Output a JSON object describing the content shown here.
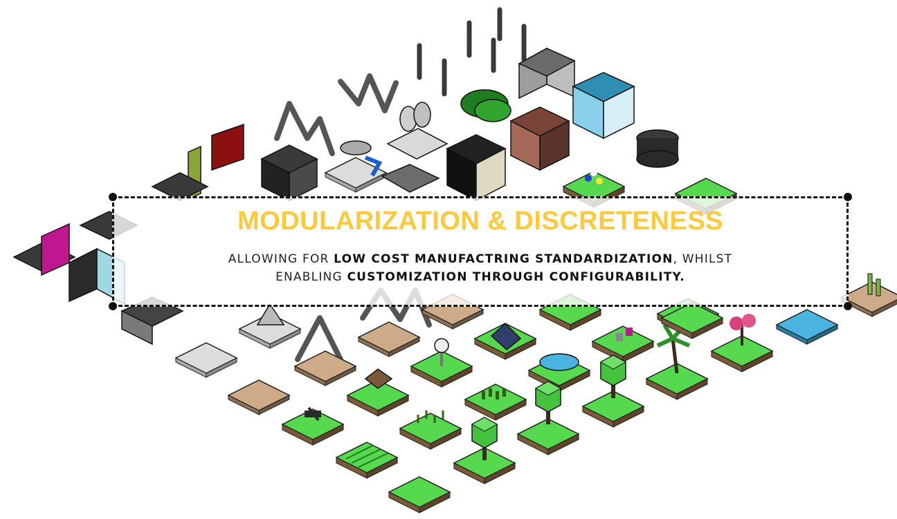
{
  "headline": "MODULARIZATION & DISCRETENESS",
  "body": {
    "line1_pre": "ALLOWING FOR ",
    "line1_bold": "LOW COST MANUFACTRING STANDARDIZATION",
    "line1_post": ", WHILST",
    "line2_pre": "ENABLING ",
    "line2_bold": "CUSTOMIZATION THROUGH CONFIGURABILITY."
  },
  "colors": {
    "headline": "#ffc93c",
    "grass": "#4fd14a",
    "grass_dark": "#2e8f2b",
    "sand": "#c9a98a",
    "concrete": "#d9d9d9",
    "water": "#4ab3e0",
    "building_dark": "#2a2a2a",
    "brick": "#8a5547",
    "teal": "#2f8fb3",
    "magenta": "#c0168f"
  }
}
